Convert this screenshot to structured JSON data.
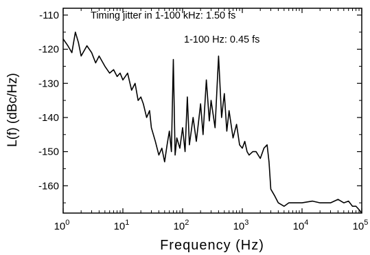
{
  "chart_data": {
    "type": "line",
    "title": "",
    "xlabel": "Frequency (Hz)",
    "ylabel": "L(f) (dBc/Hz)",
    "xscale": "log",
    "xlim": [
      1,
      100000
    ],
    "ylim": [
      -168,
      -108
    ],
    "grid": false,
    "x_ticks": [
      {
        "value": 1,
        "base": "10",
        "exp": "0"
      },
      {
        "value": 10,
        "base": "10",
        "exp": "1"
      },
      {
        "value": 100,
        "base": "10",
        "exp": "2"
      },
      {
        "value": 1000,
        "base": "10",
        "exp": "3"
      },
      {
        "value": 10000,
        "base": "10",
        "exp": "4"
      },
      {
        "value": 100000,
        "base": "10",
        "exp": "5"
      }
    ],
    "y_ticks": [
      {
        "value": -110,
        "label": "-110"
      },
      {
        "value": -120,
        "label": "-120"
      },
      {
        "value": -130,
        "label": "-130"
      },
      {
        "value": -140,
        "label": "-140"
      },
      {
        "value": -150,
        "label": "-150"
      },
      {
        "value": -160,
        "label": "-160"
      }
    ],
    "annotations": [
      "Timing jitter in 1-100 kHz: 1.50 fs",
      "1-100 Hz: 0.45 fs"
    ],
    "series": [
      {
        "color": "#000000",
        "x": [
          1,
          1.2,
          1.4,
          1.6,
          1.8,
          2,
          2.5,
          3,
          3.5,
          4,
          5,
          6,
          7,
          8,
          9,
          10,
          12,
          14,
          16,
          18,
          20,
          22,
          25,
          28,
          30,
          35,
          40,
          45,
          50,
          55,
          60,
          65,
          70,
          75,
          80,
          90,
          100,
          110,
          120,
          130,
          150,
          170,
          200,
          220,
          250,
          280,
          300,
          350,
          400,
          450,
          500,
          550,
          600,
          700,
          800,
          900,
          1000,
          1100,
          1200,
          1300,
          1500,
          1700,
          2000,
          2300,
          2600,
          2800,
          3000,
          3500,
          4000,
          5000,
          6000,
          8000,
          10000,
          15000,
          20000,
          30000,
          40000,
          50000,
          60000,
          70000,
          80000,
          90000,
          100000
        ],
        "values": [
          -117,
          -119,
          -121,
          -115,
          -118,
          -122,
          -119,
          -121,
          -124,
          -122,
          -125,
          -127,
          -126,
          -128,
          -127,
          -129,
          -127,
          -132,
          -130,
          -135,
          -134,
          -136,
          -140,
          -138,
          -143,
          -147,
          -151,
          -149,
          -153,
          -148,
          -144,
          -150,
          -123,
          -151,
          -146,
          -149,
          -143,
          -150,
          -134,
          -148,
          -140,
          -147,
          -136,
          -145,
          -129,
          -141,
          -135,
          -143,
          -122,
          -140,
          -133,
          -144,
          -138,
          -146,
          -142,
          -148,
          -149,
          -147,
          -150,
          -151,
          -150,
          -150,
          -152,
          -149,
          -148,
          -153,
          -161,
          -163,
          -165,
          -166,
          -165,
          -165,
          -165,
          -164.5,
          -165,
          -165,
          -164,
          -165,
          -164.5,
          -166,
          -166,
          -167,
          -168
        ]
      }
    ]
  }
}
